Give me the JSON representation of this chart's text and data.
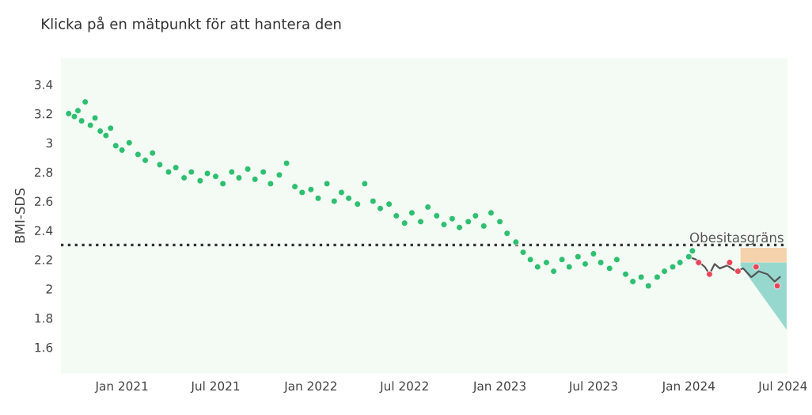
{
  "chart_data": {
    "type": "scatter",
    "title": "Klicka på en mätpunkt för att hantera den",
    "ylabel": "BMI-SDS",
    "xlim": [
      "2020-09-05",
      "2024-07-10"
    ],
    "ylim": [
      1.42,
      3.58
    ],
    "xticks": [
      {
        "value": "2021-01-01",
        "label": "Jan 2021"
      },
      {
        "value": "2021-07-01",
        "label": "Jul 2021"
      },
      {
        "value": "2022-01-01",
        "label": "Jan 2022"
      },
      {
        "value": "2022-07-01",
        "label": "Jul 2022"
      },
      {
        "value": "2023-01-01",
        "label": "Jan 2023"
      },
      {
        "value": "2023-07-01",
        "label": "Jul 2023"
      },
      {
        "value": "2024-01-01",
        "label": "Jan 2024"
      },
      {
        "value": "2024-07-01",
        "label": "Jul 2024"
      }
    ],
    "yticks": [
      1.6,
      1.8,
      2,
      2.2,
      2.4,
      2.6,
      2.8,
      3,
      3.2,
      3.4
    ],
    "grid": false,
    "legend": false,
    "marker": "circle",
    "ref_lines": [
      {
        "axis": "y",
        "value": 2.3,
        "label": "Obesitasgräns",
        "color": "#333333",
        "line_style": "dotted"
      }
    ],
    "series": [
      {
        "type": "line",
        "marker": "none",
        "color": "#f5c89a",
        "x": [
          "2024-04-10",
          "2024-07-08"
        ],
        "values": [
          null,
          null
        ],
        "lower": [
          2.18,
          2.18
        ],
        "upper": [
          2.28,
          2.28
        ]
      },
      {
        "type": "line",
        "marker": "none",
        "color": "#7fcfc4",
        "x": [
          "2024-04-10",
          "2024-07-08"
        ],
        "values": [
          null,
          null
        ],
        "lower": [
          2.16,
          1.72
        ],
        "upper": [
          2.18,
          2.18
        ]
      },
      {
        "color": "#2fbf71",
        "x": [
          "2020-09-20",
          "2020-10-01",
          "2020-10-08",
          "2020-10-15",
          "2020-10-22",
          "2020-11-01",
          "2020-11-10",
          "2020-11-20",
          "2020-12-01",
          "2020-12-10",
          "2020-12-20",
          "2021-01-01",
          "2021-01-15",
          "2021-02-01",
          "2021-02-15",
          "2021-03-01",
          "2021-03-15",
          "2021-04-01",
          "2021-04-15",
          "2021-05-01",
          "2021-05-15",
          "2021-06-01",
          "2021-06-15",
          "2021-07-01",
          "2021-07-15",
          "2021-08-01",
          "2021-08-15",
          "2021-09-01",
          "2021-09-15",
          "2021-10-01",
          "2021-10-15",
          "2021-11-01",
          "2021-11-15",
          "2021-12-01",
          "2021-12-15",
          "2022-01-01",
          "2022-01-15",
          "2022-02-01",
          "2022-02-15",
          "2022-03-01",
          "2022-03-15",
          "2022-04-01",
          "2022-04-15",
          "2022-05-01",
          "2022-05-15",
          "2022-06-01",
          "2022-06-15",
          "2022-07-01",
          "2022-07-15",
          "2022-08-01",
          "2022-08-15",
          "2022-09-01",
          "2022-09-15",
          "2022-10-01",
          "2022-10-15",
          "2022-11-01",
          "2022-11-15",
          "2022-12-01",
          "2022-12-15",
          "2023-01-01",
          "2023-01-15",
          "2023-02-01",
          "2023-02-15",
          "2023-03-01",
          "2023-03-15",
          "2023-04-01",
          "2023-04-15",
          "2023-05-01",
          "2023-05-15",
          "2023-06-01",
          "2023-06-15",
          "2023-07-01",
          "2023-07-15",
          "2023-08-01",
          "2023-08-15",
          "2023-09-01",
          "2023-09-15",
          "2023-10-01",
          "2023-10-15",
          "2023-11-01",
          "2023-11-15",
          "2023-12-01",
          "2023-12-15",
          "2024-01-01",
          "2024-01-08"
        ],
        "values": [
          3.2,
          3.18,
          3.22,
          3.15,
          3.28,
          3.12,
          3.17,
          3.08,
          3.05,
          3.1,
          2.98,
          2.95,
          3.0,
          2.92,
          2.88,
          2.93,
          2.85,
          2.8,
          2.83,
          2.76,
          2.8,
          2.74,
          2.79,
          2.77,
          2.72,
          2.8,
          2.76,
          2.82,
          2.75,
          2.8,
          2.72,
          2.78,
          2.86,
          2.7,
          2.66,
          2.68,
          2.62,
          2.72,
          2.6,
          2.66,
          2.62,
          2.58,
          2.72,
          2.6,
          2.55,
          2.58,
          2.5,
          2.45,
          2.52,
          2.46,
          2.56,
          2.5,
          2.44,
          2.48,
          2.42,
          2.46,
          2.5,
          2.43,
          2.52,
          2.46,
          2.38,
          2.32,
          2.25,
          2.2,
          2.15,
          2.18,
          2.12,
          2.2,
          2.15,
          2.22,
          2.17,
          2.24,
          2.18,
          2.14,
          2.2,
          2.1,
          2.05,
          2.08,
          2.02,
          2.08,
          2.12,
          2.15,
          2.18,
          2.22,
          2.26
        ]
      },
      {
        "type": "line",
        "marker": "none",
        "color": "#555555",
        "x": [
          "2024-01-01",
          "2024-01-15",
          "2024-02-01",
          "2024-02-10",
          "2024-02-20",
          "2024-03-01",
          "2024-03-15",
          "2024-04-01",
          "2024-04-15",
          "2024-05-01",
          "2024-05-15",
          "2024-06-01",
          "2024-06-15",
          "2024-06-25"
        ],
        "values": [
          2.22,
          2.2,
          2.15,
          2.1,
          2.17,
          2.14,
          2.16,
          2.12,
          2.14,
          2.08,
          2.12,
          2.1,
          2.05,
          2.08
        ]
      },
      {
        "type": "scatter",
        "color": "#e8475a",
        "x": [
          "2024-01-20",
          "2024-02-10",
          "2024-03-20",
          "2024-04-05",
          "2024-05-10",
          "2024-06-20"
        ],
        "values": [
          2.18,
          2.1,
          2.18,
          2.12,
          2.15,
          2.02
        ]
      }
    ]
  }
}
